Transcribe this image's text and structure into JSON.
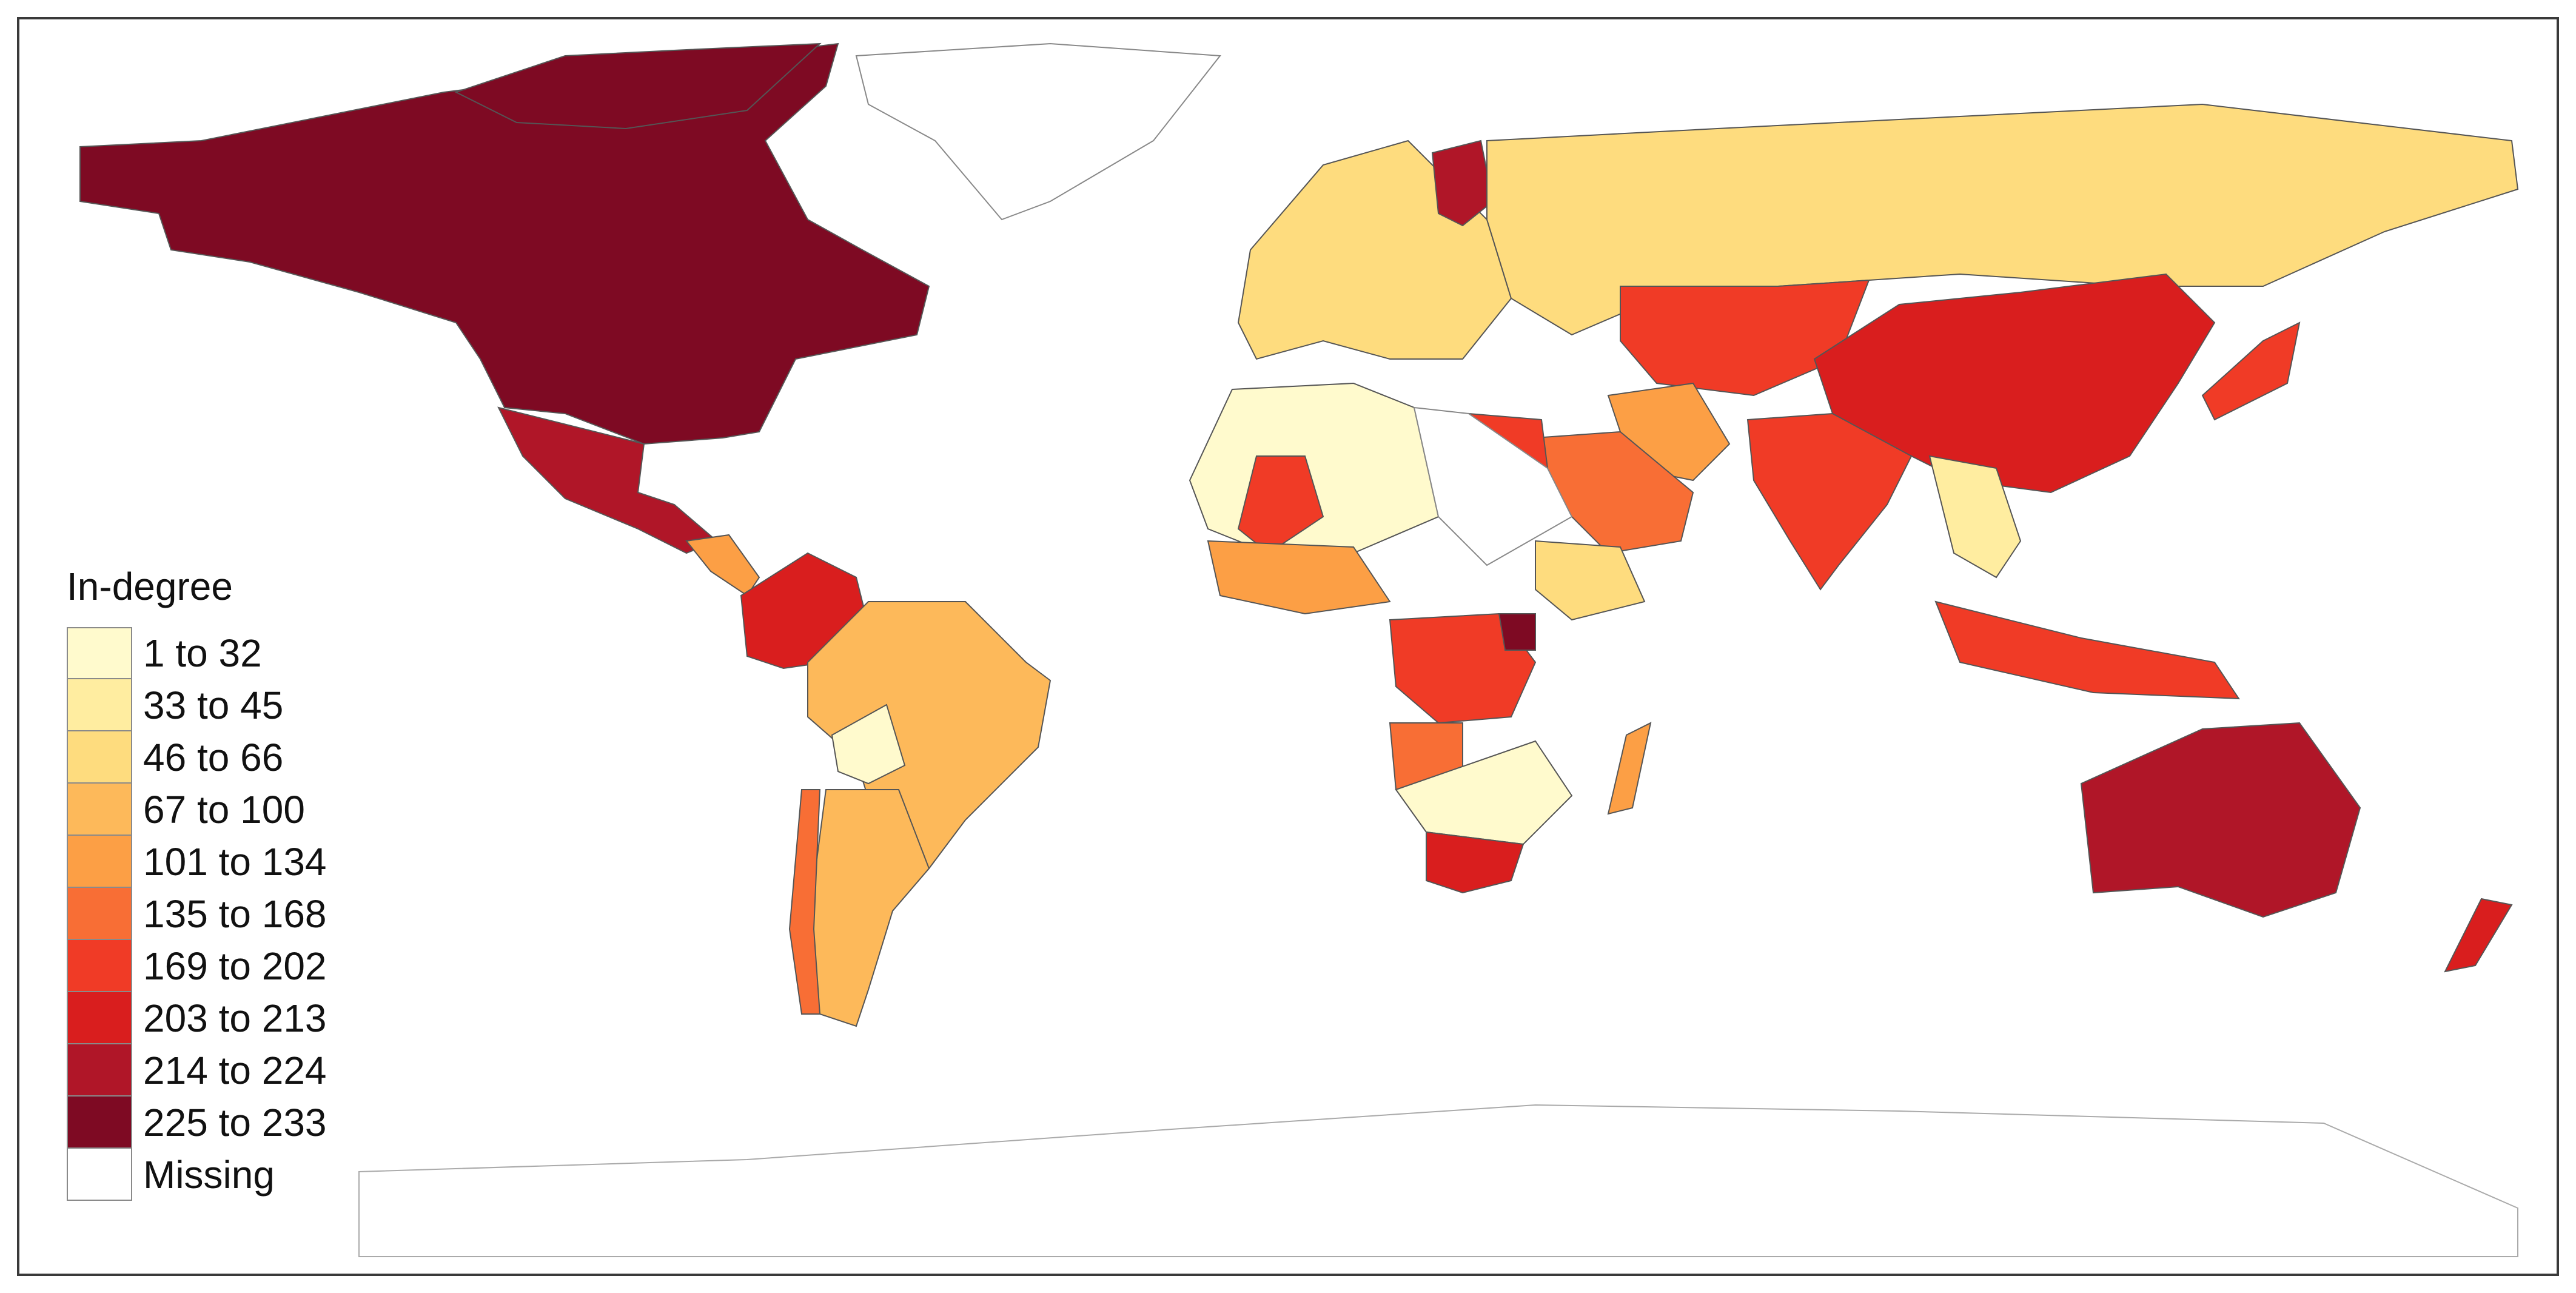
{
  "legend": {
    "title": "In-degree",
    "items": [
      {
        "label": "1 to 32",
        "color": "#FFFACD"
      },
      {
        "label": "33 to 45",
        "color": "#FFEDA0"
      },
      {
        "label": "46 to 66",
        "color": "#FEDC7E"
      },
      {
        "label": "67 to 100",
        "color": "#FDB95A"
      },
      {
        "label": "101 to 134",
        "color": "#FC9F45"
      },
      {
        "label": "135 to 168",
        "color": "#F86E35"
      },
      {
        "label": "169 to 202",
        "color": "#F03B26"
      },
      {
        "label": "203 to 213",
        "color": "#D91E1E"
      },
      {
        "label": "214 to 224",
        "color": "#B01628"
      },
      {
        "label": "225 to 233",
        "color": "#7E0A23"
      },
      {
        "label": "Missing",
        "color": "#FFFFFF"
      }
    ]
  }
}
